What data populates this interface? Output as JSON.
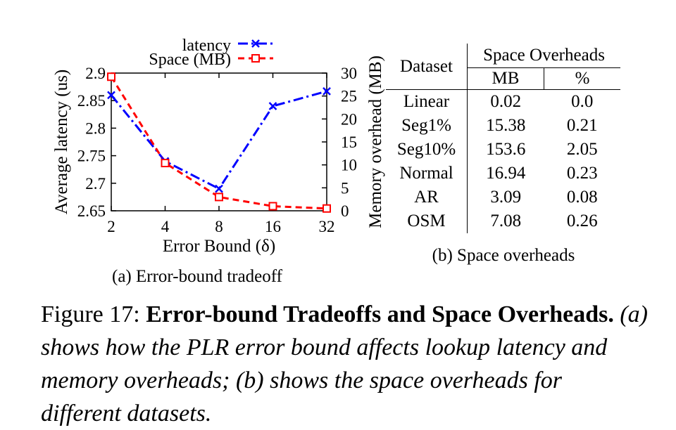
{
  "chart_data": {
    "type": "line",
    "x_categories": [
      "2",
      "4",
      "8",
      "16",
      "32"
    ],
    "xlabel": "Error Bound (δ)",
    "ylabel_left": "Average latency (us)",
    "ylabel_right": "Memory overhead (MB)",
    "ylim_left": [
      2.65,
      2.9
    ],
    "ylim_right": [
      0,
      30
    ],
    "yticks_left": [
      "2.9",
      "2.85",
      "2.8",
      "2.75",
      "2.7",
      "2.65"
    ],
    "yticks_right": [
      "30",
      "25",
      "20",
      "15",
      "10",
      "5",
      "0"
    ],
    "legend_position": "top-right",
    "series": [
      {
        "name": "latency",
        "axis": "left",
        "color": "#0000ff",
        "style": "dash-dot",
        "marker": "x",
        "values": [
          2.86,
          2.74,
          2.69,
          2.84,
          2.867
        ]
      },
      {
        "name": "Space (MB)",
        "axis": "right",
        "color": "#ff0000",
        "style": "dashed",
        "marker": "square",
        "values": [
          29.2,
          10.4,
          3.0,
          1.0,
          0.5
        ]
      }
    ]
  },
  "subcaption_a": "(a) Error-bound tradeoff",
  "table": {
    "header_dataset": "Dataset",
    "header_group": "Space Overheads",
    "header_mb": "MB",
    "header_pct": "%",
    "rows": [
      {
        "dataset": "Linear",
        "mb": "0.02",
        "pct": "0.0"
      },
      {
        "dataset": "Seg1%",
        "mb": "15.38",
        "pct": "0.21"
      },
      {
        "dataset": "Seg10%",
        "mb": "153.6",
        "pct": "2.05"
      },
      {
        "dataset": "Normal",
        "mb": "16.94",
        "pct": "0.23"
      },
      {
        "dataset": "AR",
        "mb": "3.09",
        "pct": "0.08"
      },
      {
        "dataset": "OSM",
        "mb": "7.08",
        "pct": "0.26"
      }
    ]
  },
  "subcaption_b": "(b) Space overheads",
  "figure_caption": {
    "label": "Figure 17:",
    "title": "Error-bound Tradeoffs and Space Overheads.",
    "body": "(a) shows how the PLR error bound affects lookup latency and memory overheads; (b) shows the space overheads for different datasets."
  }
}
